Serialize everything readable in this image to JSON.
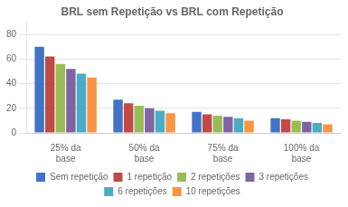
{
  "chart_data": {
    "type": "bar",
    "title": "BRL sem Repetição vs BRL com Repetição",
    "categories": [
      "25% da\nbase",
      "50% da\nbase",
      "75% da\nbase",
      "100% da\nbase"
    ],
    "series": [
      {
        "name": "Sem repetição",
        "color": "#4472C4",
        "values": [
          70,
          27,
          17,
          12
        ]
      },
      {
        "name": "1 repetição",
        "color": "#BE4B48",
        "values": [
          62,
          24,
          15,
          11
        ]
      },
      {
        "name": "2 repetições",
        "color": "#9BBB59",
        "values": [
          56,
          22,
          14,
          10
        ]
      },
      {
        "name": "3 repetições",
        "color": "#8064A2",
        "values": [
          52,
          20,
          13,
          9
        ]
      },
      {
        "name": "6 repetições",
        "color": "#4BACC6",
        "values": [
          48,
          18,
          12,
          8
        ]
      },
      {
        "name": "10 repetições",
        "color": "#F79646",
        "values": [
          45,
          16,
          10,
          7
        ]
      }
    ],
    "ylim": [
      0,
      90
    ],
    "yticks": [
      0,
      20,
      40,
      60,
      80
    ],
    "grid": true,
    "legend": "bottom"
  }
}
